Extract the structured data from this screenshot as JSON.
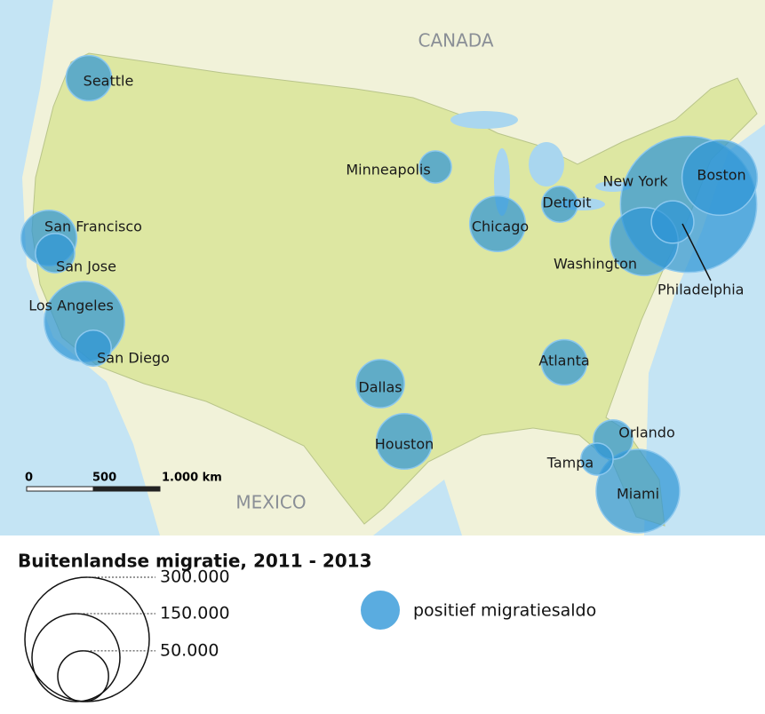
{
  "map": {
    "labels": {
      "canada": "CANADA",
      "mexico": "MEXICO"
    },
    "scale_bar": [
      "0",
      "500",
      "1.000 km"
    ],
    "cities": [
      {
        "name": "New York",
        "value": 360000
      },
      {
        "name": "Boston",
        "value": 110000
      },
      {
        "name": "Washington",
        "value": 90000
      },
      {
        "name": "Philadelphia",
        "value": 35000
      },
      {
        "name": "Seattle",
        "value": 40000
      },
      {
        "name": "San Francisco",
        "value": 60000
      },
      {
        "name": "San Jose",
        "value": 30000
      },
      {
        "name": "Los Angeles",
        "value": 125000
      },
      {
        "name": "San Diego",
        "value": 25000
      },
      {
        "name": "Minneapolis",
        "value": 20000
      },
      {
        "name": "Chicago",
        "value": 60000
      },
      {
        "name": "Detroit",
        "value": 25000
      },
      {
        "name": "Atlanta",
        "value": 40000
      },
      {
        "name": "Dallas",
        "value": 45000
      },
      {
        "name": "Houston",
        "value": 60000
      },
      {
        "name": "Miami",
        "value": 135000
      },
      {
        "name": "Orlando",
        "value": 30000
      },
      {
        "name": "Tampa",
        "value": 20000
      }
    ]
  },
  "legend": {
    "title": "Buitenlandse migratie, 2011 - 2013",
    "sizes": [
      {
        "value": 300000,
        "label": "300.000"
      },
      {
        "value": 150000,
        "label": "150.000"
      },
      {
        "value": 50000,
        "label": "50.000"
      }
    ],
    "color_label": "positief migratiesaldo"
  }
}
